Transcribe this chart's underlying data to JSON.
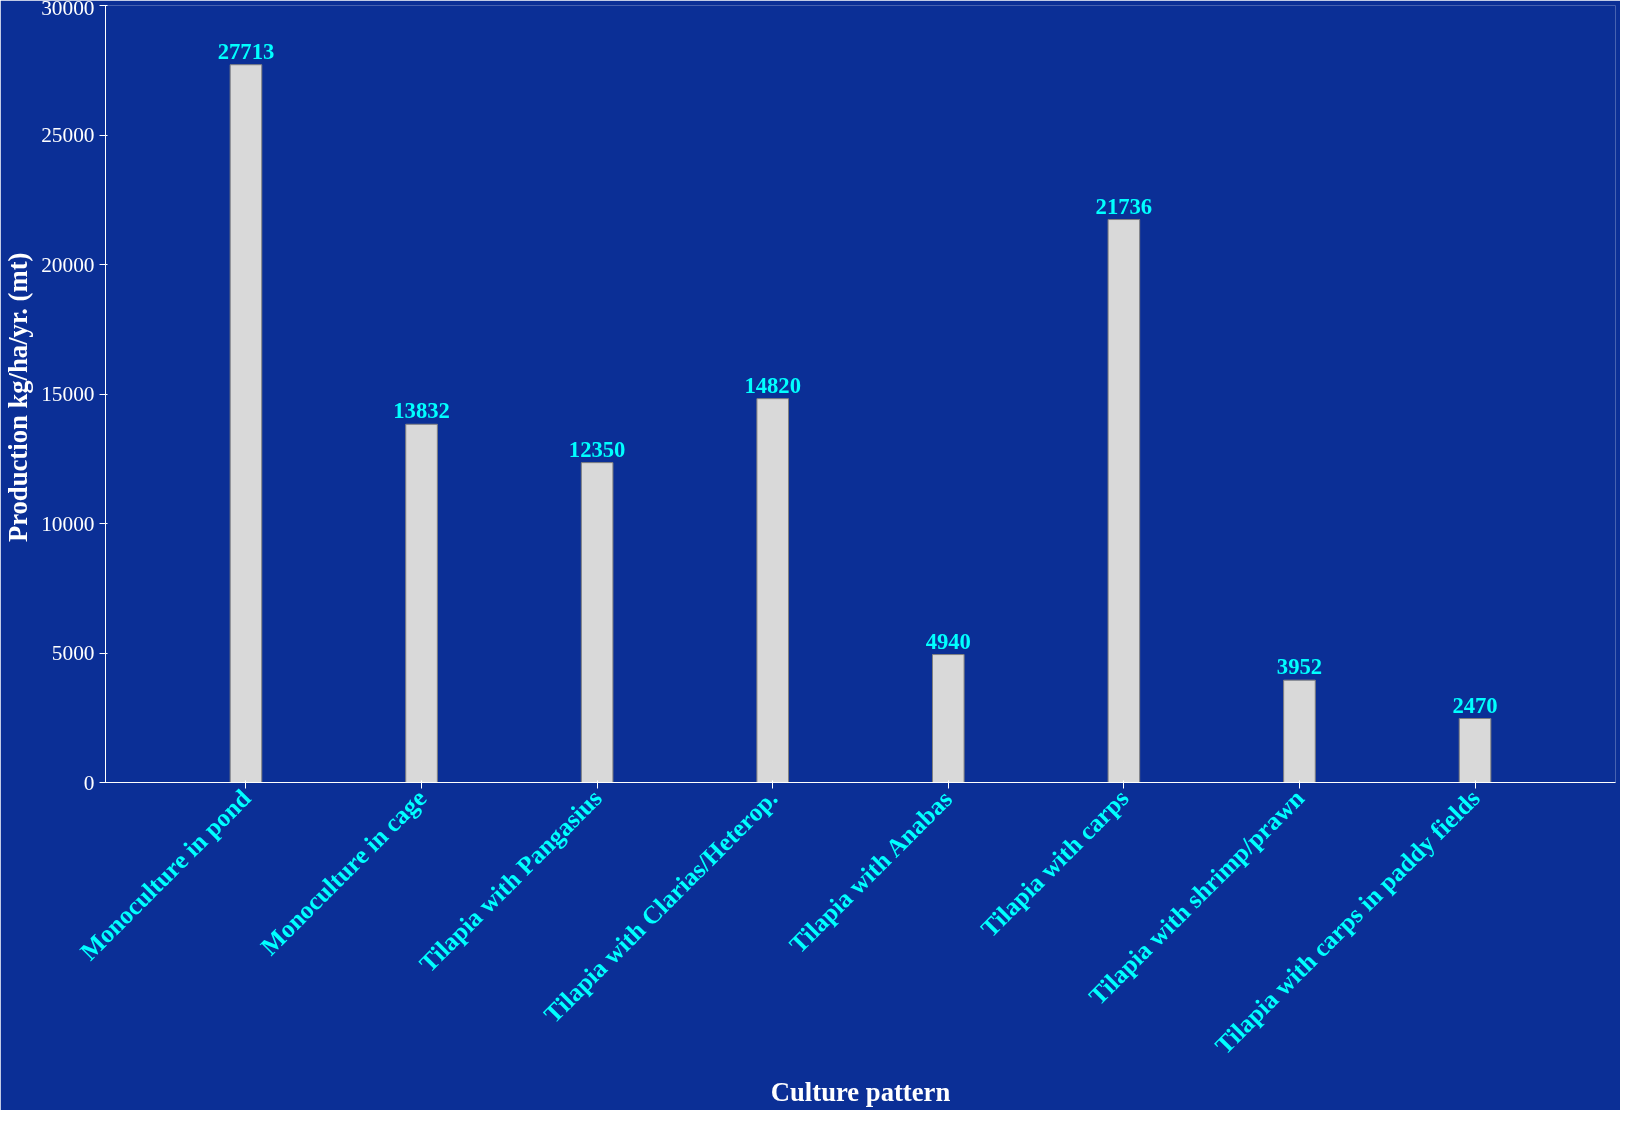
{
  "chart_data": {
    "type": "bar",
    "xlabel": "Culture pattern",
    "ylabel": "Production kg/ha/yr.  (mt)",
    "categories": [
      "Monoculture in pond",
      "Monoculture in cage",
      "Tilapia with Pangasius",
      "Tilapia with Clarias/Heterop.",
      "Tilapia with Anabas",
      "Tilapia with carps",
      "Tilapia with shrimp/prawn",
      "Tilapia with carps in paddy fields"
    ],
    "values": [
      27713,
      13832,
      12350,
      14820,
      4940,
      21736,
      3952,
      2470
    ],
    "color": "#d9d9d9",
    "ylim": [
      0,
      30000
    ],
    "yticks": [
      0,
      5000,
      10000,
      15000,
      20000,
      25000,
      30000
    ],
    "grid": false,
    "data_labels": true
  }
}
